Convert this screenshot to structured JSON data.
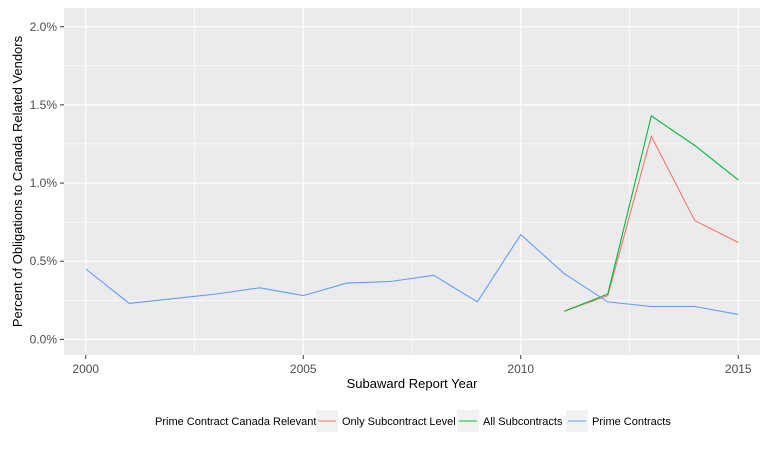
{
  "chart_data": {
    "type": "line",
    "xlabel": "Subaward Report Year",
    "ylabel": "Percent of Obligations to Canada Related Vendors",
    "xlim": [
      1999.5,
      2015.5
    ],
    "ylim": [
      -0.001,
      0.0212
    ],
    "x_ticks": [
      2000,
      2005,
      2010,
      2015
    ],
    "x_tick_labels": [
      "2000",
      "2005",
      "2010",
      "2015"
    ],
    "y_ticks": [
      0.0,
      0.005,
      0.01,
      0.015,
      0.02
    ],
    "y_tick_labels": [
      "0.0%",
      "0.5%",
      "1.0%",
      "1.5%",
      "2.0%"
    ],
    "grid": true,
    "legend_position": "bottom",
    "legend_title": "Prime Contract Canada Relevant",
    "series": [
      {
        "name": "Only Subcontract Level",
        "color": "#F8766D",
        "x": [
          2011,
          2012,
          2013,
          2014,
          2015
        ],
        "values": [
          0.0018,
          0.0028,
          0.013,
          0.0076,
          0.0062
        ]
      },
      {
        "name": "All Subcontracts",
        "color": "#00BA38",
        "x": [
          2011,
          2012,
          2013,
          2014,
          2015
        ],
        "values": [
          0.0018,
          0.0029,
          0.0143,
          0.0124,
          0.0102
        ]
      },
      {
        "name": "Prime Contracts",
        "color": "#619CFF",
        "x": [
          2000,
          2001,
          2002,
          2003,
          2004,
          2005,
          2006,
          2007,
          2008,
          2009,
          2010,
          2011,
          2012,
          2013,
          2014,
          2015
        ],
        "values": [
          0.0045,
          0.0023,
          0.0026,
          0.0029,
          0.0033,
          0.0028,
          0.0036,
          0.0037,
          0.0041,
          0.0024,
          0.0067,
          0.0042,
          0.0024,
          0.0021,
          0.0021,
          0.0016
        ]
      }
    ]
  }
}
